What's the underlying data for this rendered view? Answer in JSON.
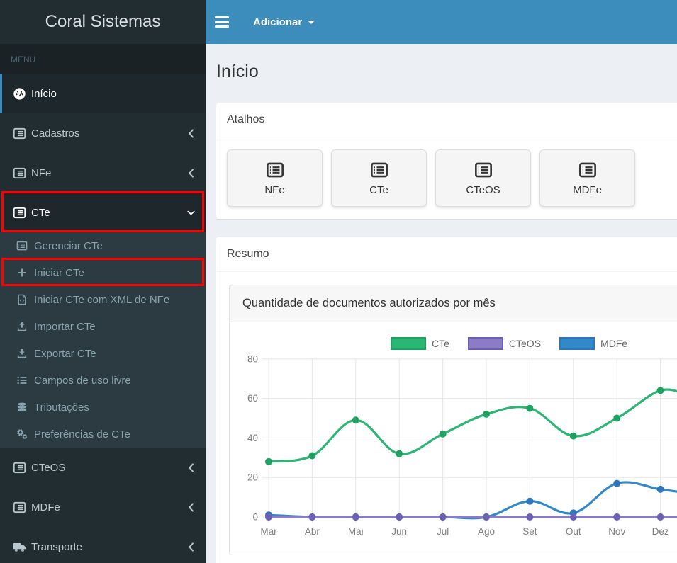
{
  "app": {
    "brand": "Coral Sistemas"
  },
  "navbar": {
    "add_menu_label": "Adicionar"
  },
  "page": {
    "title": "Início"
  },
  "sidebar": {
    "section_header": "MENU",
    "items": [
      {
        "id": "inicio",
        "label": "Início",
        "icon": "tachometer",
        "active": true
      },
      {
        "id": "cadastros",
        "label": "Cadastros",
        "icon": "list-alt",
        "chevron": "left"
      },
      {
        "id": "nfe",
        "label": "NFe",
        "icon": "list-alt",
        "chevron": "left"
      },
      {
        "id": "cte",
        "label": "CTe",
        "icon": "list-alt",
        "chevron": "down",
        "open": true,
        "annotated": true,
        "children": [
          {
            "id": "gerenciar-cte",
            "label": "Gerenciar CTe",
            "icon": "list-alt"
          },
          {
            "id": "iniciar-cte",
            "label": "Iniciar CTe",
            "icon": "plus",
            "annotated": true
          },
          {
            "id": "iniciar-cte-com-xml-de-nfe",
            "label": "Iniciar CTe com XML de NFe",
            "icon": "file-code"
          },
          {
            "id": "importar-cte",
            "label": "Importar CTe",
            "icon": "upload"
          },
          {
            "id": "exportar-cte",
            "label": "Exportar CTe",
            "icon": "download"
          },
          {
            "id": "campos-de-uso-livre",
            "label": "Campos de uso livre",
            "icon": "list-ul"
          },
          {
            "id": "tributacoes",
            "label": "Tributações",
            "icon": "database"
          },
          {
            "id": "preferencias-de-cte",
            "label": "Preferências de CTe",
            "icon": "gears"
          }
        ]
      },
      {
        "id": "cteos",
        "label": "CTeOS",
        "icon": "list-alt",
        "chevron": "left"
      },
      {
        "id": "mdfe",
        "label": "MDFe",
        "icon": "list-alt",
        "chevron": "left"
      },
      {
        "id": "transporte",
        "label": "Transporte",
        "icon": "truck",
        "chevron": "left"
      }
    ]
  },
  "panels": {
    "shortcuts": {
      "title": "Atalhos",
      "buttons": [
        {
          "id": "nfe",
          "label": "NFe",
          "icon": "list-alt"
        },
        {
          "id": "cte",
          "label": "CTe",
          "icon": "list-alt"
        },
        {
          "id": "cteos",
          "label": "CTeOS",
          "icon": "list-alt"
        },
        {
          "id": "mdfe",
          "label": "MDFe",
          "icon": "list-alt"
        }
      ]
    },
    "summary": {
      "title": "Resumo"
    }
  },
  "chart_data": {
    "type": "line",
    "title": "Quantidade de documentos autorizados por mês",
    "categories": [
      "Mar",
      "Abr",
      "Mai",
      "Jun",
      "Jul",
      "Ago",
      "Set",
      "Out",
      "Nov",
      "Dez"
    ],
    "series": [
      {
        "id": "cte",
        "name": "CTe",
        "color": "#2bb673",
        "point_color": "#1da261",
        "values": [
          28,
          31,
          49,
          32,
          42,
          52,
          55,
          41,
          50,
          64
        ],
        "edge_value": 61
      },
      {
        "id": "cteos",
        "name": "CTeOS",
        "color": "#8b7cc5",
        "point_color": "#6c60b4",
        "values": [
          0,
          0,
          0,
          0,
          0,
          0,
          0,
          0,
          0,
          0
        ],
        "edge_value": 0
      },
      {
        "id": "mdfe",
        "name": "MDFe",
        "color": "#3289c9",
        "point_color": "#2f77bd",
        "values": [
          1,
          0,
          0,
          0,
          0,
          0,
          8,
          2,
          17,
          14
        ],
        "edge_value": 12
      }
    ],
    "ylim": [
      0,
      80
    ],
    "yticks": [
      0,
      20,
      40,
      60,
      80
    ],
    "grid": true,
    "legend_position": "top",
    "note": "chart cropped at right window edge; lines continue past Dez"
  },
  "colors": {
    "navbar": "#3c8dbc",
    "sidebar": "#222d32",
    "sidebar_submenu": "#2c3b41",
    "sidebar_active_bg": "#1e282c",
    "content_bg": "#ecf0f5",
    "annotation": "#fe0000",
    "grid_line": "#e7e7e7",
    "axis_text": "#808080"
  }
}
